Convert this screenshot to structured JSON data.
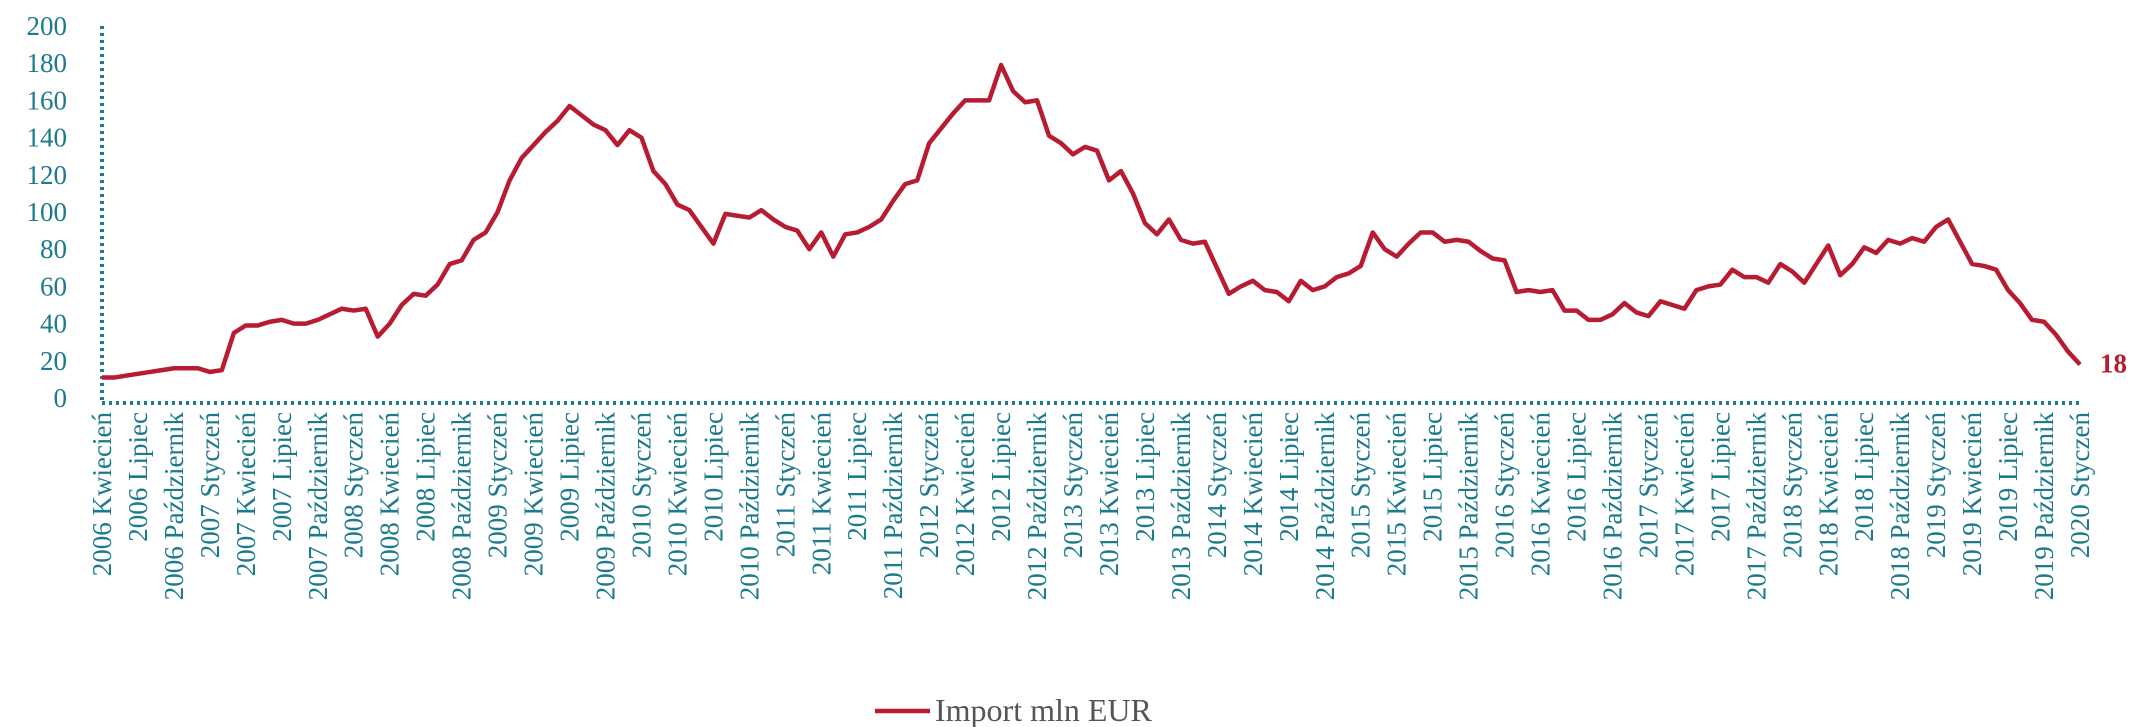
{
  "chart_data": {
    "type": "line",
    "categories": [
      "2006 Kwiecień",
      null,
      null,
      "2006 Lipiec",
      null,
      null,
      "2006 Październik",
      null,
      null,
      "2007 Styczeń",
      null,
      null,
      "2007 Kwiecień",
      null,
      null,
      "2007 Lipiec",
      null,
      null,
      "2007 Październik",
      null,
      null,
      "2008 Styczeń",
      null,
      null,
      "2008 Kwiecień",
      null,
      null,
      "2008 Lipiec",
      null,
      null,
      "2008 Październik",
      null,
      null,
      "2009 Styczeń",
      null,
      null,
      "2009 Kwiecień",
      null,
      null,
      "2009 Lipiec",
      null,
      null,
      "2009 Październik",
      null,
      null,
      "2010 Styczeń",
      null,
      null,
      "2010 Kwiecień",
      null,
      null,
      "2010 Lipiec",
      null,
      null,
      "2010 Październik",
      null,
      null,
      "2011 Styczeń",
      null,
      null,
      "2011 Kwiecień",
      null,
      null,
      "2011 Lipiec",
      null,
      null,
      "2011 Październik",
      null,
      null,
      "2012 Styczeń",
      null,
      null,
      "2012 Kwiecień",
      null,
      null,
      "2012 Lipiec",
      null,
      null,
      "2012 Październik",
      null,
      null,
      "2013 Styczeń",
      null,
      null,
      "2013 Kwiecień",
      null,
      null,
      "2013 Lipiec",
      null,
      null,
      "2013 Październik",
      null,
      null,
      "2014 Styczeń",
      null,
      null,
      "2014 Kwiecień",
      null,
      null,
      "2014 Lipiec",
      null,
      null,
      "2014 Październik",
      null,
      null,
      "2015 Styczeń",
      null,
      null,
      "2015 Kwiecień",
      null,
      null,
      "2015 Lipiec",
      null,
      null,
      "2015 Październik",
      null,
      null,
      "2016 Styczeń",
      null,
      null,
      "2016 Kwiecień",
      null,
      null,
      "2016 Lipiec",
      null,
      null,
      "2016 Październik",
      null,
      null,
      "2017 Styczeń",
      null,
      null,
      "2017 Kwiecień",
      null,
      null,
      "2017 Lipiec",
      null,
      null,
      "2017 Październik",
      null,
      null,
      "2018 Styczeń",
      null,
      null,
      "2018 Kwiecień",
      null,
      null,
      "2018 Lipiec",
      null,
      null,
      "2018 Październik",
      null,
      null,
      "2019 Styczeń",
      null,
      null,
      "2019 Kwiecień",
      null,
      null,
      "2019 Lipiec",
      null,
      null,
      "2019 Październik",
      null,
      null,
      "2020 Styczeń"
    ],
    "series": [
      {
        "name": "Import mln EUR",
        "color": "#b71c32",
        "values": [
          11,
          11,
          12,
          13,
          14,
          15,
          16,
          16,
          16,
          14,
          15,
          35,
          39,
          39,
          41,
          42,
          40,
          40,
          42,
          45,
          48,
          47,
          48,
          33,
          40,
          50,
          56,
          55,
          61,
          72,
          74,
          85,
          89,
          100,
          117,
          129,
          136,
          143,
          149,
          157,
          152,
          147,
          144,
          136,
          144,
          140,
          122,
          115,
          104,
          101,
          92,
          83,
          99,
          98,
          97,
          101,
          96,
          92,
          90,
          80,
          89,
          76,
          88,
          89,
          92,
          96,
          106,
          115,
          117,
          137,
          145,
          153,
          160,
          160,
          160,
          179,
          165,
          159,
          160,
          141,
          137,
          131,
          135,
          133,
          117,
          122,
          110,
          94,
          88,
          96,
          85,
          83,
          84,
          70,
          56,
          60,
          63,
          58,
          57,
          52,
          63,
          58,
          60,
          65,
          67,
          71,
          89,
          80,
          76,
          83,
          89,
          89,
          84,
          85,
          84,
          79,
          75,
          74,
          57,
          58,
          57,
          58,
          47,
          47,
          42,
          42,
          45,
          51,
          46,
          44,
          52,
          50,
          48,
          58,
          60,
          61,
          69,
          65,
          65,
          62,
          72,
          68,
          62,
          72,
          82,
          66,
          72,
          81,
          78,
          85,
          83,
          86,
          84,
          92,
          96,
          84,
          72,
          71,
          69,
          58,
          51,
          42,
          41,
          34,
          25,
          18
        ]
      }
    ],
    "ylim": [
      0,
      200
    ],
    "yticks": [
      0,
      20,
      40,
      60,
      80,
      100,
      120,
      140,
      160,
      180,
      200
    ],
    "legend": "bottom"
  }
}
